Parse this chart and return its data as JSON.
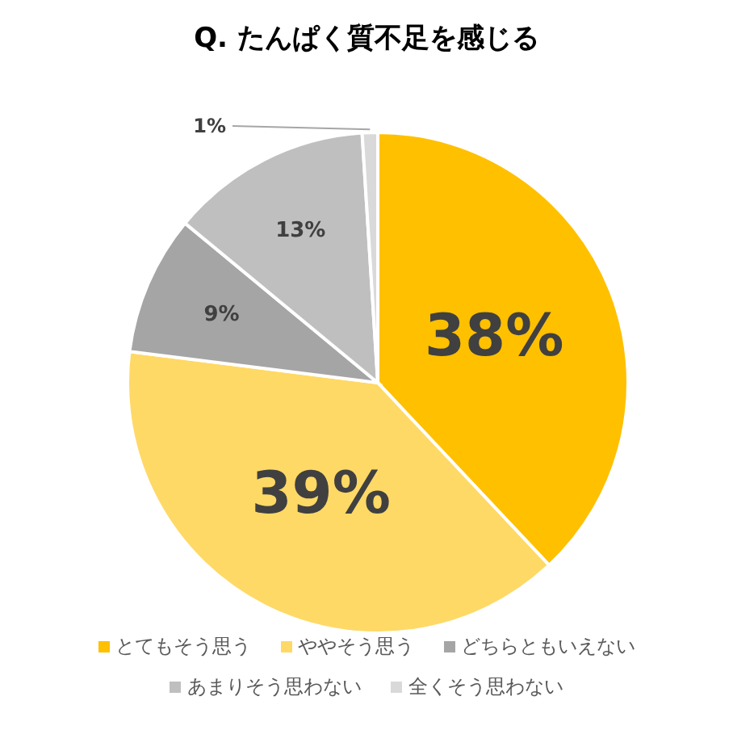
{
  "chart_data": {
    "type": "pie",
    "title": "Q. たんぱく質不足を感じる",
    "categories": [
      "とてもそう思う",
      "ややそう思う",
      "どちらともいえない",
      "あまりそう思わない",
      "全くそう思わない"
    ],
    "values": [
      38,
      39,
      9,
      13,
      1
    ],
    "value_labels": [
      "38%",
      "39%",
      "9%",
      "13%",
      "1%"
    ],
    "colors": [
      "#ffc000",
      "#ffd966",
      "#a5a5a5",
      "#bfbfbf",
      "#d9d9d9"
    ],
    "legend": "bottom"
  }
}
